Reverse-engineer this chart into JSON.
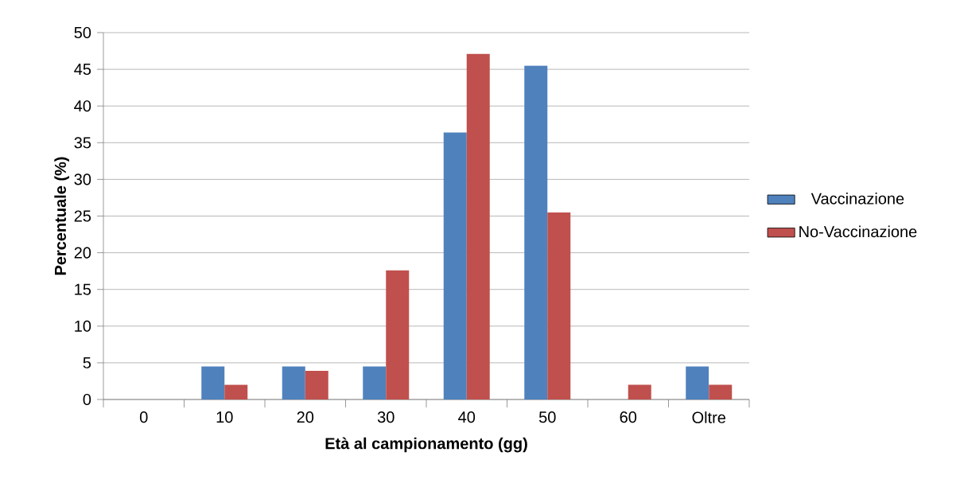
{
  "chart_data": {
    "type": "bar",
    "xlabel": "Età al campionamento (gg)",
    "ylabel": "Percentuale (%)",
    "categories": [
      "0",
      "10",
      "20",
      "30",
      "40",
      "50",
      "60",
      "Oltre"
    ],
    "series": [
      {
        "name": "Vaccinazione",
        "color": "#4f81bd",
        "values": [
          0,
          4.5,
          4.5,
          4.5,
          36.4,
          45.5,
          0,
          4.5
        ]
      },
      {
        "name": "No-Vaccinazione",
        "color": "#c0504d",
        "values": [
          0,
          2,
          3.9,
          17.6,
          47.1,
          25.5,
          2,
          2
        ]
      }
    ],
    "ylim": [
      0,
      50
    ],
    "yticks": [
      0,
      5,
      10,
      15,
      20,
      25,
      30,
      35,
      40,
      45,
      50
    ],
    "grid": "y",
    "legend": "right"
  }
}
